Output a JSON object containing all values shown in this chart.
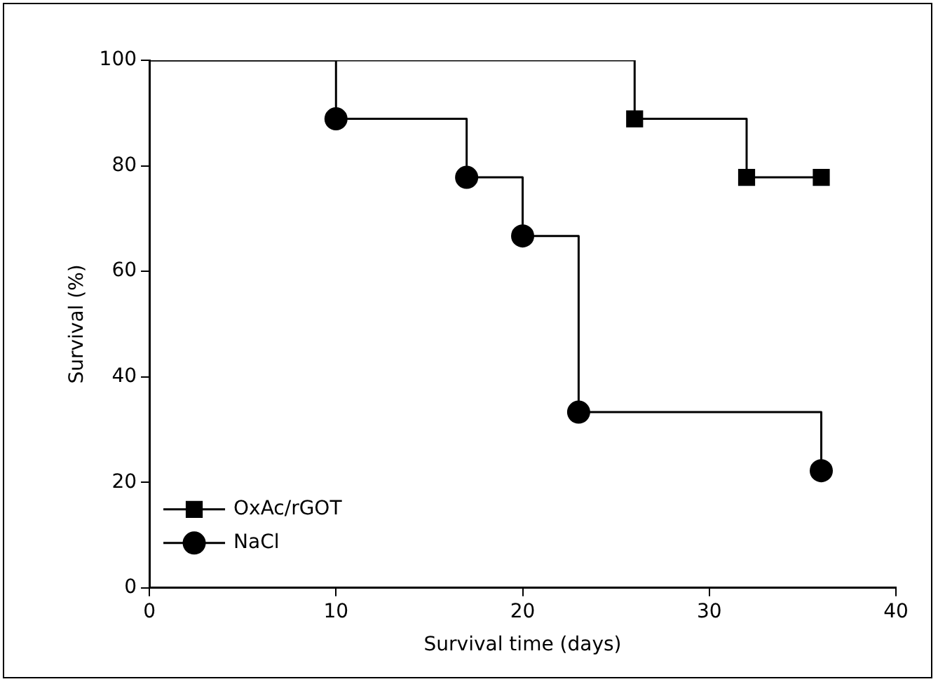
{
  "chart_data": {
    "type": "step",
    "xlabel": "Survival time (days)",
    "ylabel": "Survival (%)",
    "series": [
      {
        "name": "OxAc/rGOT",
        "color": "#000000",
        "marker": "square",
        "x": [
          0,
          26,
          32,
          36
        ],
        "values": [
          100,
          88.9,
          77.8,
          77.8
        ]
      },
      {
        "name": "NaCl",
        "color": "#000000",
        "marker": "circle",
        "x": [
          0,
          10,
          17,
          20,
          23,
          36
        ],
        "values": [
          100,
          88.9,
          77.8,
          66.7,
          33.3,
          22.2
        ]
      }
    ],
    "xlim": [
      0,
      40
    ],
    "xticks": [
      0,
      10,
      20,
      30,
      40
    ],
    "ylim": [
      0,
      100
    ],
    "yticks": [
      0,
      20,
      40,
      60,
      80,
      100
    ],
    "grid": false,
    "legend": "bottom left"
  }
}
